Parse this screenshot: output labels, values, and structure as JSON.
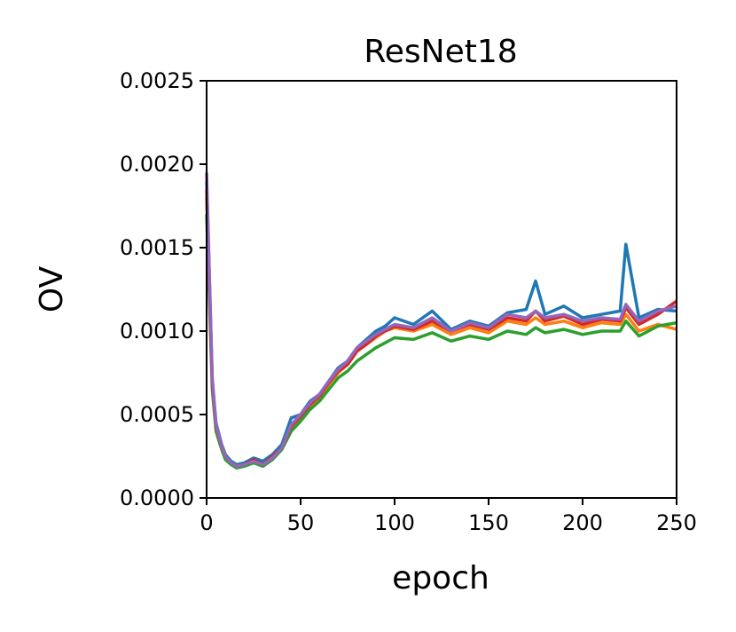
{
  "chart_data": {
    "type": "line",
    "title": "ResNet18",
    "xlabel": "epoch",
    "ylabel": "OV",
    "xlim": [
      0,
      250
    ],
    "ylim": [
      0,
      0.0025
    ],
    "xticks": [
      0,
      50,
      100,
      150,
      200,
      250
    ],
    "xtick_labels": [
      "0",
      "50",
      "100",
      "150",
      "200",
      "250"
    ],
    "yticks": [
      0,
      0.0005,
      0.001,
      0.0015,
      0.002,
      0.0025
    ],
    "ytick_labels": [
      "0.0000",
      "0.0005",
      "0.0010",
      "0.0015",
      "0.0020",
      "0.0025"
    ],
    "grid": false,
    "legend": "none",
    "x": [
      0,
      3,
      5,
      8,
      10,
      13,
      16,
      20,
      25,
      30,
      35,
      40,
      45,
      50,
      55,
      60,
      65,
      70,
      75,
      80,
      85,
      90,
      95,
      100,
      110,
      120,
      130,
      140,
      150,
      160,
      170,
      175,
      180,
      190,
      200,
      210,
      220,
      223,
      230,
      240,
      250
    ],
    "series": [
      {
        "color": "#1f77b4",
        "values": [
          0.0019,
          0.0007,
          0.00045,
          0.00032,
          0.00026,
          0.00022,
          0.0002,
          0.00021,
          0.00024,
          0.00022,
          0.00026,
          0.00032,
          0.00048,
          0.0005,
          0.00058,
          0.00062,
          0.0007,
          0.00078,
          0.00082,
          0.0009,
          0.00095,
          0.001,
          0.00103,
          0.00108,
          0.00104,
          0.00112,
          0.00101,
          0.00106,
          0.00103,
          0.00111,
          0.00113,
          0.0013,
          0.0011,
          0.00115,
          0.00108,
          0.0011,
          0.00112,
          0.00152,
          0.00108,
          0.00113,
          0.00112
        ]
      },
      {
        "color": "#ff7f0e",
        "values": [
          0.0018,
          0.00068,
          0.00042,
          0.0003,
          0.00024,
          0.00021,
          0.00019,
          0.0002,
          0.00022,
          0.0002,
          0.00024,
          0.0003,
          0.00042,
          0.00048,
          0.00055,
          0.0006,
          0.00068,
          0.00075,
          0.0008,
          0.00088,
          0.00092,
          0.00096,
          0.001,
          0.00102,
          0.001,
          0.00104,
          0.00098,
          0.00102,
          0.00099,
          0.00106,
          0.00104,
          0.00108,
          0.00104,
          0.00106,
          0.00102,
          0.00105,
          0.00104,
          0.0011,
          0.001,
          0.00104,
          0.00101
        ]
      },
      {
        "color": "#2ca02c",
        "values": [
          0.0017,
          0.00065,
          0.0004,
          0.00029,
          0.00023,
          0.0002,
          0.00018,
          0.00019,
          0.00021,
          0.00019,
          0.00023,
          0.00029,
          0.0004,
          0.00046,
          0.00053,
          0.00058,
          0.00065,
          0.00072,
          0.00076,
          0.00082,
          0.00086,
          0.0009,
          0.00093,
          0.00096,
          0.00095,
          0.00099,
          0.00094,
          0.00097,
          0.00095,
          0.001,
          0.00098,
          0.00102,
          0.00099,
          0.00101,
          0.00098,
          0.001,
          0.001,
          0.00106,
          0.00097,
          0.00103,
          0.00105
        ]
      },
      {
        "color": "#d62728",
        "values": [
          0.00185,
          0.00069,
          0.00043,
          0.00031,
          0.00025,
          0.00021,
          0.00019,
          0.0002,
          0.00023,
          0.0002,
          0.00025,
          0.0003,
          0.00043,
          0.00049,
          0.00056,
          0.00061,
          0.00069,
          0.00076,
          0.0008,
          0.00088,
          0.00092,
          0.00097,
          0.001,
          0.00103,
          0.00101,
          0.00106,
          0.001,
          0.00104,
          0.00101,
          0.00108,
          0.00106,
          0.00112,
          0.00106,
          0.00109,
          0.00104,
          0.00107,
          0.00106,
          0.00114,
          0.00104,
          0.0011,
          0.00118
        ]
      },
      {
        "color": "#9467bd",
        "values": [
          0.00195,
          0.00072,
          0.00044,
          0.00031,
          0.00025,
          0.00021,
          0.00019,
          0.0002,
          0.00022,
          0.0002,
          0.00024,
          0.0003,
          0.00044,
          0.0005,
          0.00057,
          0.00062,
          0.0007,
          0.00077,
          0.00082,
          0.0009,
          0.00094,
          0.00098,
          0.00101,
          0.00104,
          0.00102,
          0.00108,
          0.001,
          0.00105,
          0.00102,
          0.0011,
          0.00108,
          0.00112,
          0.00108,
          0.0011,
          0.00106,
          0.00108,
          0.00107,
          0.00116,
          0.00106,
          0.00112,
          0.00115
        ]
      }
    ]
  }
}
